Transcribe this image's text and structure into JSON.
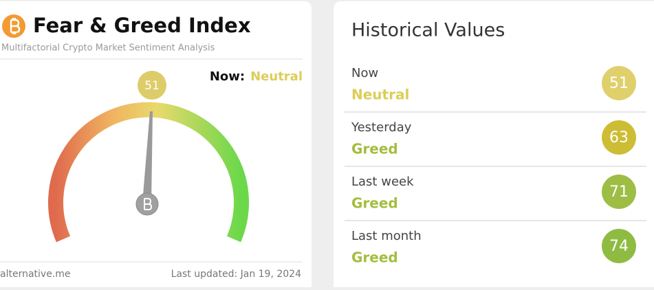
{
  "header": {
    "title": "Fear & Greed Index",
    "subtitle": "Multifactorial Crypto Market Sentiment Analysis"
  },
  "gauge": {
    "value": 51,
    "now_label": "Now:",
    "classification": "Neutral",
    "color": "#dccd6a",
    "text_color": "#dccd5a"
  },
  "footer": {
    "source": "alternative.me",
    "updated": "Last updated: Jan 19, 2024"
  },
  "history": {
    "title": "Historical Values",
    "rows": [
      {
        "period": "Now",
        "classification": "Neutral",
        "value": 51,
        "color": "#dfd06c",
        "text_color": "#dccd5a"
      },
      {
        "period": "Yesterday",
        "classification": "Greed",
        "value": 63,
        "color": "#cdbd34",
        "text_color": "#a4bd3e"
      },
      {
        "period": "Last week",
        "classification": "Greed",
        "value": 71,
        "color": "#9dbd45",
        "text_color": "#a4bd3e"
      },
      {
        "period": "Last month",
        "classification": "Greed",
        "value": 74,
        "color": "#8fbb43",
        "text_color": "#a4bd3e"
      }
    ]
  }
}
